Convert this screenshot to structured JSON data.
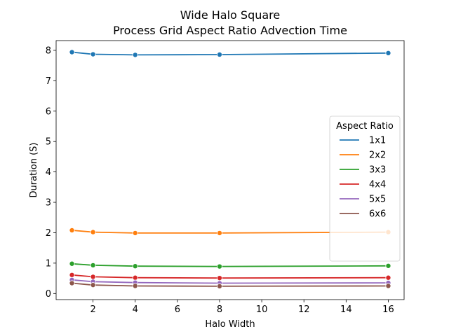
{
  "chart_data": {
    "type": "line",
    "title_line1": "Wide Halo Square",
    "title_line2": "Process Grid Aspect Ratio Advection Time",
    "xlabel": "Halo Width",
    "ylabel": "Duration (S)",
    "x": [
      1,
      2,
      4,
      8,
      16
    ],
    "xlim": [
      0.25,
      16.75
    ],
    "ylim": [
      -0.2,
      8.32
    ],
    "xticks": [
      2,
      4,
      6,
      8,
      10,
      12,
      14,
      16
    ],
    "yticks": [
      0,
      1,
      2,
      3,
      4,
      5,
      6,
      7,
      8
    ],
    "grid": false,
    "legend": {
      "title": "Aspect Ratio",
      "placement": "center-right"
    },
    "series": [
      {
        "name": "1x1",
        "color": "#1f77b4",
        "values": [
          7.94,
          7.87,
          7.85,
          7.86,
          7.91
        ]
      },
      {
        "name": "2x2",
        "color": "#ff7f0e",
        "values": [
          2.08,
          2.02,
          1.99,
          1.99,
          2.02
        ]
      },
      {
        "name": "3x3",
        "color": "#2ca02c",
        "values": [
          0.98,
          0.93,
          0.9,
          0.89,
          0.91
        ]
      },
      {
        "name": "4x4",
        "color": "#d62728",
        "values": [
          0.61,
          0.55,
          0.52,
          0.51,
          0.52
        ]
      },
      {
        "name": "5x5",
        "color": "#9467bd",
        "values": [
          0.45,
          0.39,
          0.36,
          0.34,
          0.35
        ]
      },
      {
        "name": "6x6",
        "color": "#8c564b",
        "values": [
          0.34,
          0.28,
          0.25,
          0.24,
          0.25
        ]
      }
    ]
  }
}
